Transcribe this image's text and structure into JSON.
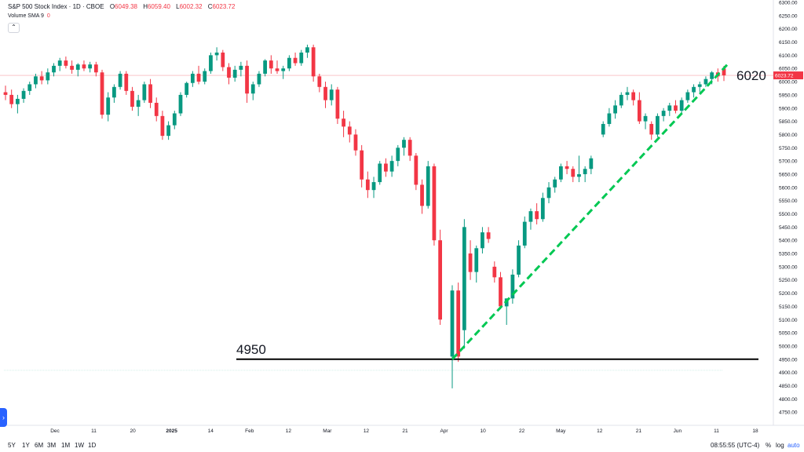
{
  "header": {
    "symbol": "S&P 500 Stock Index · 1D · CBOE",
    "o_label": "O",
    "o_value": "6049.38",
    "h_label": "H",
    "h_value": "6059.40",
    "l_label": "L",
    "l_value": "6002.32",
    "c_label": "C",
    "c_value": "6023.72",
    "volume_label": "Volume SMA 9",
    "volume_value": "0"
  },
  "annotations": {
    "support_label": "4950",
    "trend_label": "6020"
  },
  "last_price_tag": "6023.72",
  "bottom": {
    "ranges": [
      "5Y",
      "1Y",
      "6M",
      "3M",
      "1M",
      "1W",
      "1D"
    ],
    "time": "08:55:55 (UTC-4)",
    "pct": "%",
    "log": "log",
    "auto": "auto"
  },
  "colors": {
    "up": "#089981",
    "down": "#f23645",
    "trend": "#00c853",
    "support": "#000000"
  },
  "chart_data": {
    "type": "candlestick",
    "ylim": [
      4700,
      6300
    ],
    "y_ticks": [
      4750,
      4800,
      4850,
      4900,
      4950,
      5000,
      5050,
      5100,
      5150,
      5200,
      5250,
      5300,
      5350,
      5400,
      5450,
      5500,
      5550,
      5600,
      5650,
      5700,
      5750,
      5800,
      5850,
      5900,
      5950,
      6000,
      6050,
      6100,
      6150,
      6200,
      6250,
      6300
    ],
    "x_ticks": [
      "Dec",
      "11",
      "20",
      "2025",
      "14",
      "Feb",
      "12",
      "Mar",
      "12",
      "21",
      "Apr",
      "10",
      "22",
      "May",
      "12",
      "21",
      "Jun",
      "11",
      "18"
    ],
    "support_level": 4950,
    "trendline": {
      "from": 4950,
      "to": 6070
    },
    "ohlc": [
      [
        5960,
        5985,
        5930,
        5950
      ],
      [
        5950,
        5970,
        5900,
        5915
      ],
      [
        5915,
        5950,
        5880,
        5935
      ],
      [
        5935,
        5975,
        5920,
        5965
      ],
      [
        5965,
        6000,
        5950,
        5990
      ],
      [
        5990,
        6030,
        5975,
        6020
      ],
      [
        6020,
        6040,
        5990,
        6005
      ],
      [
        6005,
        6050,
        5990,
        6035
      ],
      [
        6035,
        6070,
        6020,
        6060
      ],
      [
        6060,
        6090,
        6040,
        6080
      ],
      [
        6080,
        6095,
        6050,
        6060
      ],
      [
        6060,
        6080,
        6030,
        6045
      ],
      [
        6045,
        6070,
        6020,
        6065
      ],
      [
        6065,
        6080,
        6040,
        6050
      ],
      [
        6050,
        6075,
        6035,
        6065
      ],
      [
        6065,
        6075,
        6020,
        6035
      ],
      [
        6035,
        6045,
        5860,
        5875
      ],
      [
        5875,
        5960,
        5850,
        5940
      ],
      [
        5940,
        5990,
        5920,
        5980
      ],
      [
        5980,
        6040,
        5970,
        6030
      ],
      [
        6030,
        6040,
        5950,
        5965
      ],
      [
        5965,
        5980,
        5890,
        5905
      ],
      [
        5905,
        5950,
        5870,
        5930
      ],
      [
        5930,
        6000,
        5920,
        5990
      ],
      [
        5990,
        6010,
        5900,
        5920
      ],
      [
        5920,
        5940,
        5850,
        5870
      ],
      [
        5870,
        5890,
        5780,
        5795
      ],
      [
        5795,
        5850,
        5780,
        5835
      ],
      [
        5835,
        5890,
        5820,
        5880
      ],
      [
        5880,
        5960,
        5870,
        5950
      ],
      [
        5950,
        6000,
        5940,
        5995
      ],
      [
        5995,
        6040,
        5980,
        6030
      ],
      [
        6030,
        6060,
        5990,
        6000
      ],
      [
        6000,
        6050,
        5990,
        6040
      ],
      [
        6040,
        6110,
        6030,
        6100
      ],
      [
        6100,
        6130,
        6080,
        6110
      ],
      [
        6110,
        6120,
        6040,
        6055
      ],
      [
        6055,
        6070,
        5990,
        6015
      ],
      [
        6015,
        6060,
        6000,
        6045
      ],
      [
        6045,
        6075,
        6020,
        6060
      ],
      [
        6060,
        6080,
        5920,
        5955
      ],
      [
        5955,
        6000,
        5930,
        5990
      ],
      [
        5990,
        6040,
        5980,
        6030
      ],
      [
        6030,
        6085,
        6020,
        6080
      ],
      [
        6080,
        6100,
        6030,
        6050
      ],
      [
        6050,
        6080,
        6030,
        6040
      ],
      [
        6040,
        6060,
        6010,
        6050
      ],
      [
        6050,
        6100,
        6040,
        6090
      ],
      [
        6090,
        6110,
        6060,
        6070
      ],
      [
        6070,
        6120,
        6060,
        6110
      ],
      [
        6110,
        6140,
        6090,
        6130
      ],
      [
        6130,
        6140,
        6000,
        6020
      ],
      [
        6020,
        6030,
        5960,
        5980
      ],
      [
        5980,
        6000,
        5900,
        5930
      ],
      [
        5930,
        5990,
        5910,
        5970
      ],
      [
        5970,
        5980,
        5840,
        5860
      ],
      [
        5860,
        5890,
        5790,
        5830
      ],
      [
        5830,
        5850,
        5770,
        5800
      ],
      [
        5800,
        5820,
        5720,
        5740
      ],
      [
        5740,
        5760,
        5600,
        5630
      ],
      [
        5630,
        5660,
        5560,
        5590
      ],
      [
        5590,
        5640,
        5560,
        5620
      ],
      [
        5620,
        5700,
        5610,
        5690
      ],
      [
        5690,
        5710,
        5640,
        5660
      ],
      [
        5660,
        5720,
        5640,
        5700
      ],
      [
        5700,
        5760,
        5680,
        5750
      ],
      [
        5750,
        5790,
        5720,
        5780
      ],
      [
        5780,
        5790,
        5700,
        5720
      ],
      [
        5720,
        5730,
        5590,
        5610
      ],
      [
        5610,
        5630,
        5500,
        5530
      ],
      [
        5530,
        5700,
        5520,
        5680
      ],
      [
        5680,
        5690,
        5380,
        5400
      ],
      [
        5400,
        5440,
        5080,
        5100
      ],
      [
        4960,
        5230,
        4840,
        5210
      ],
      [
        5210,
        5240,
        4940,
        4960
      ],
      [
        5060,
        5480,
        4990,
        5450
      ],
      [
        5350,
        5400,
        5250,
        5280
      ],
      [
        5280,
        5380,
        5240,
        5370
      ],
      [
        5370,
        5450,
        5350,
        5430
      ],
      [
        5430,
        5450,
        5390,
        5405
      ],
      [
        5300,
        5320,
        5240,
        5260
      ],
      [
        5260,
        5280,
        5140,
        5150
      ],
      [
        5150,
        5180,
        5080,
        5180
      ],
      [
        5180,
        5290,
        5160,
        5270
      ],
      [
        5270,
        5400,
        5260,
        5380
      ],
      [
        5380,
        5490,
        5370,
        5470
      ],
      [
        5470,
        5520,
        5440,
        5510
      ],
      [
        5510,
        5540,
        5460,
        5480
      ],
      [
        5480,
        5580,
        5470,
        5560
      ],
      [
        5560,
        5620,
        5540,
        5600
      ],
      [
        5600,
        5640,
        5580,
        5630
      ],
      [
        5630,
        5690,
        5620,
        5680
      ],
      [
        5680,
        5700,
        5650,
        5670
      ],
      [
        5670,
        5680,
        5620,
        5640
      ],
      [
        5640,
        5720,
        5620,
        5650
      ],
      [
        5650,
        5680,
        5620,
        5670
      ],
      [
        5670,
        5720,
        5650,
        5710
      ],
      [
        5800,
        5850,
        5790,
        5840
      ],
      [
        5840,
        5900,
        5830,
        5880
      ],
      [
        5880,
        5930,
        5860,
        5910
      ],
      [
        5910,
        5960,
        5900,
        5950
      ],
      [
        5950,
        5980,
        5930,
        5960
      ],
      [
        5960,
        5970,
        5910,
        5930
      ],
      [
        5930,
        5960,
        5840,
        5850
      ],
      [
        5850,
        5880,
        5820,
        5870
      ],
      [
        5840,
        5850,
        5780,
        5800
      ],
      [
        5800,
        5880,
        5790,
        5870
      ],
      [
        5870,
        5900,
        5850,
        5890
      ],
      [
        5890,
        5920,
        5870,
        5910
      ],
      [
        5910,
        5930,
        5880,
        5890
      ],
      [
        5890,
        5940,
        5880,
        5930
      ],
      [
        5930,
        5970,
        5920,
        5960
      ],
      [
        5960,
        5990,
        5940,
        5980
      ],
      [
        5980,
        6000,
        5960,
        5990
      ],
      [
        5990,
        6020,
        5980,
        6010
      ],
      [
        6010,
        6040,
        5990,
        6035
      ],
      [
        6035,
        6050,
        6000,
        6020
      ],
      [
        6049.38,
        6059.4,
        6002.32,
        6023.72
      ]
    ],
    "gap_after": [
      72,
      96
    ]
  }
}
